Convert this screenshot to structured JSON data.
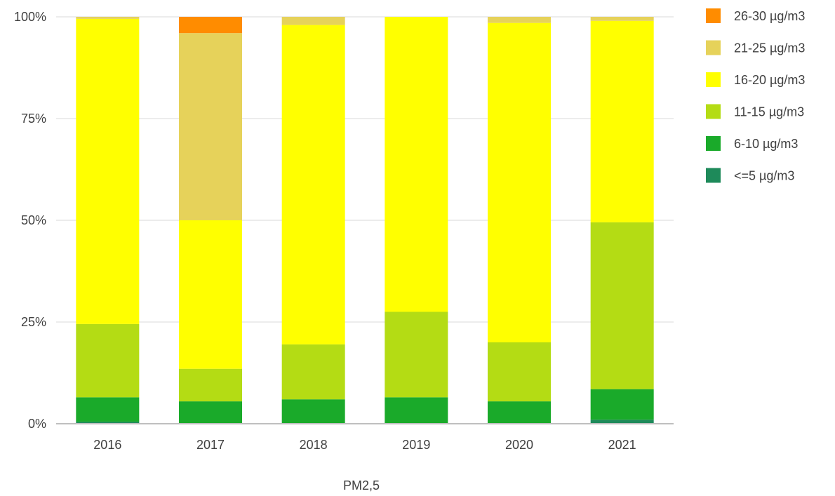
{
  "chart_data": {
    "type": "bar",
    "stacked": true,
    "normalized": true,
    "categories": [
      "2016",
      "2017",
      "2018",
      "2019",
      "2020",
      "2021"
    ],
    "series": [
      {
        "name": "<=5 µg/m3",
        "color": "#1e8a5a",
        "values": [
          0.5,
          0,
          0,
          0,
          0,
          1.0
        ]
      },
      {
        "name": "6-10 µg/m3",
        "color": "#1aaa2a",
        "values": [
          6,
          5.5,
          6,
          6.5,
          5.5,
          7.5
        ]
      },
      {
        "name": "11-15 µg/m3",
        "color": "#b4dc14",
        "values": [
          18,
          8,
          13.5,
          21,
          14.5,
          41
        ]
      },
      {
        "name": "16-20 µg/m3",
        "color": "#ffff00",
        "values": [
          75,
          36.5,
          78.5,
          72.5,
          78.5,
          49.5
        ]
      },
      {
        "name": "21-25 µg/m3",
        "color": "#e6d25a",
        "values": [
          0.5,
          46,
          2,
          0,
          1.5,
          1.0
        ]
      },
      {
        "name": "26-30 µg/m3",
        "color": "#ff8c00",
        "values": [
          0,
          4,
          0,
          0,
          0,
          0
        ]
      }
    ],
    "legend_order": [
      "26-30 µg/m3",
      "21-25 µg/m3",
      "16-20 µg/m3",
      "11-15 µg/m3",
      "6-10 µg/m3",
      "<=5 µg/m3"
    ],
    "yticks": [
      "0%",
      "25%",
      "50%",
      "75%",
      "100%"
    ],
    "ylim": [
      0,
      100
    ],
    "grid": true,
    "legend_position": "right",
    "title": "",
    "xlabel": "PM2,5",
    "ylabel": ""
  }
}
